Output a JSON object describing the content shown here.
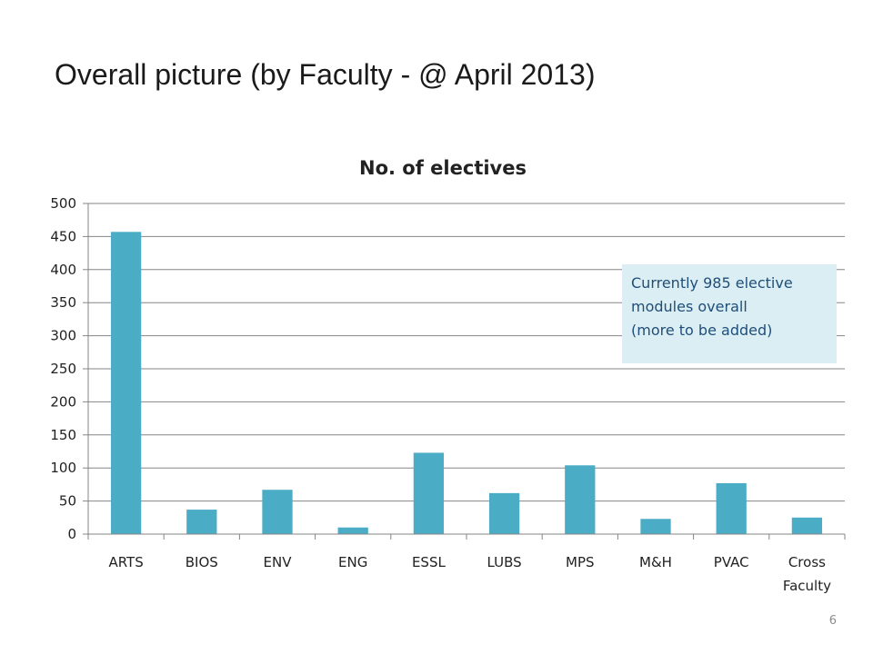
{
  "slide": {
    "title": "Overall picture (by Faculty - @ April 2013)",
    "page_number": "6"
  },
  "callout": {
    "lines": [
      "Currently 985 elective",
      "modules overall",
      "(more to be added)"
    ]
  },
  "colors": {
    "bar": "#4bacc6",
    "gridline": "#868686",
    "callout_bg": "#dbeef3",
    "callout_text": "#1f4e79"
  },
  "chart_data": {
    "type": "bar",
    "title": "No. of electives",
    "categories": [
      "ARTS",
      "BIOS",
      "ENV",
      "ENG",
      "ESSL",
      "LUBS",
      "MPS",
      "M&H",
      "PVAC",
      "Cross Faculty"
    ],
    "category_lines": [
      [
        "ARTS"
      ],
      [
        "BIOS"
      ],
      [
        "ENV"
      ],
      [
        "ENG"
      ],
      [
        "ESSL"
      ],
      [
        "LUBS"
      ],
      [
        "MPS"
      ],
      [
        "M&H"
      ],
      [
        "PVAC"
      ],
      [
        "Cross",
        "Faculty"
      ]
    ],
    "values": [
      457,
      37,
      67,
      10,
      123,
      62,
      104,
      23,
      77,
      25
    ],
    "ylim": [
      0,
      500
    ],
    "yticks": [
      0,
      50,
      100,
      150,
      200,
      250,
      300,
      350,
      400,
      450,
      500
    ],
    "grid": true,
    "legend": "none"
  }
}
